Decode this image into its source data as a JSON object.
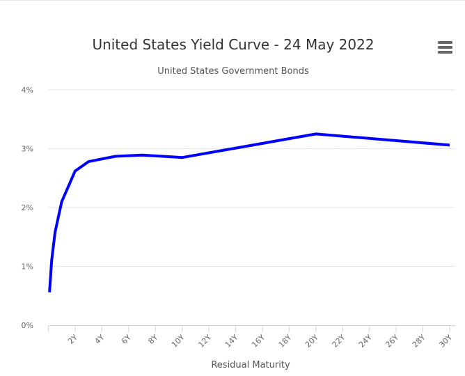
{
  "chart_data": {
    "type": "line",
    "title": "United States Yield Curve - 24 May 2022",
    "subtitle": "United States Government Bonds",
    "xlabel": "Residual Maturity",
    "ylabel": "",
    "x_unit": "years",
    "xlim": [
      0,
      30
    ],
    "ylim": [
      0,
      4
    ],
    "y_ticks": [
      "0%",
      "1%",
      "2%",
      "3%",
      "4%"
    ],
    "x_ticks": [
      "2Y",
      "4Y",
      "6Y",
      "8Y",
      "10Y",
      "12Y",
      "14Y",
      "16Y",
      "18Y",
      "20Y",
      "22Y",
      "24Y",
      "26Y",
      "28Y",
      "30Y"
    ],
    "grid": true,
    "legend": "none",
    "series": [
      {
        "color": "#0000ff",
        "x": [
          0.083,
          0.25,
          0.5,
          1,
          2,
          3,
          5,
          7,
          10,
          20,
          30
        ],
        "y": [
          0.56,
          1.11,
          1.58,
          2.1,
          2.62,
          2.78,
          2.87,
          2.89,
          2.85,
          3.25,
          3.06
        ]
      }
    ]
  },
  "menu": {
    "icon": "hamburger-menu-icon"
  }
}
